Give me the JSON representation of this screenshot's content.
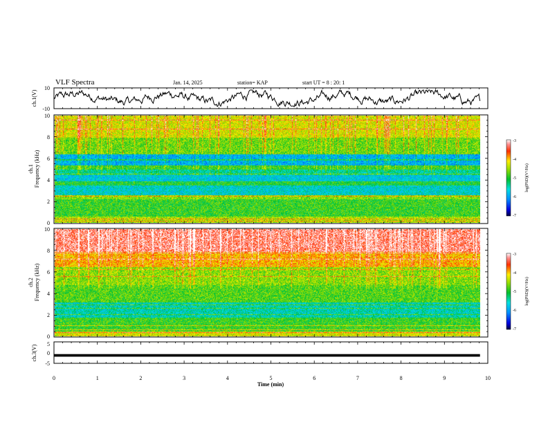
{
  "header": {
    "title": "VLF Spectra",
    "date": "Jan. 14, 2025",
    "station": "station= KAP",
    "start": "start  UT =  8 : 20: 1"
  },
  "colors": {
    "spec_low": "#1a1acc",
    "spec_mid": "#22cc44",
    "spec_high": "#ee2211",
    "trace": "#000000"
  },
  "chart_data": [
    {
      "id": "ch1_waveform",
      "type": "line",
      "ylabel": "ch.1(V)",
      "ylim": [
        -10,
        10
      ],
      "yticks": [
        "10",
        "-10"
      ],
      "xlim": [
        0,
        10
      ],
      "series_level": "noise around 0 V, amplitude ~ +-6 V, data ends near 9.8 min"
    },
    {
      "id": "ch1_spectrogram",
      "type": "heatmap",
      "ylabel": "Frequency (kHz)",
      "channel_label": "ch.1",
      "ylim": [
        0,
        10
      ],
      "yticks": [
        "0",
        "2",
        "4",
        "6",
        "8",
        "10"
      ],
      "xlim": [
        0,
        10
      ],
      "colorbar": {
        "label": "log(PSD)(V²/Hz)",
        "range": [
          -7,
          -3
        ],
        "ticks": [
          "-3",
          "-4",
          "-5",
          "-6",
          "-7"
        ]
      },
      "bands": [
        {
          "from": 0.0,
          "to": 0.6,
          "level": -4.5
        },
        {
          "from": 0.6,
          "to": 2.2,
          "level": -4.9
        },
        {
          "from": 2.2,
          "to": 2.6,
          "level": -4.6
        },
        {
          "from": 2.6,
          "to": 3.5,
          "level": -5.6
        },
        {
          "from": 3.5,
          "to": 3.9,
          "level": -5.0
        },
        {
          "from": 3.9,
          "to": 4.5,
          "level": -5.7
        },
        {
          "from": 4.5,
          "to": 5.0,
          "level": -5.4
        },
        {
          "from": 5.0,
          "to": 5.4,
          "level": -4.9
        },
        {
          "from": 5.4,
          "to": 6.4,
          "level": -5.9
        },
        {
          "from": 6.4,
          "to": 8.0,
          "level": -4.7
        },
        {
          "from": 8.0,
          "to": 10.0,
          "level": -4.3
        }
      ]
    },
    {
      "id": "ch2_spectrogram",
      "type": "heatmap",
      "ylabel": "Frequency (kHz)",
      "channel_label": "ch.2",
      "ylim": [
        0,
        10
      ],
      "yticks": [
        "0",
        "2",
        "4",
        "6",
        "8",
        "10"
      ],
      "xlim": [
        0,
        10
      ],
      "colorbar": {
        "label": "log(PSD)(V²/Hz)",
        "range": [
          -7,
          -3
        ],
        "ticks": [
          "-3",
          "-4",
          "-5",
          "-6",
          "-7"
        ]
      },
      "bands": [
        {
          "from": 0.0,
          "to": 0.5,
          "level": -4.3
        },
        {
          "from": 0.5,
          "to": 1.8,
          "level": -4.9
        },
        {
          "from": 1.8,
          "to": 3.2,
          "level": -5.5
        },
        {
          "from": 3.2,
          "to": 4.8,
          "level": -4.8
        },
        {
          "from": 4.8,
          "to": 6.5,
          "level": -4.6
        },
        {
          "from": 6.5,
          "to": 8.0,
          "level": -4.0
        },
        {
          "from": 8.0,
          "to": 10.0,
          "level": -3.3
        }
      ]
    },
    {
      "id": "ch3_waveform",
      "type": "line",
      "ylabel": "ch.3(V)",
      "ylim": [
        -5,
        5
      ],
      "yticks": [
        "5",
        "0",
        "-5"
      ],
      "xlim": [
        0,
        10
      ],
      "series_level": "near-constant -1.2 V thick band, data ends near 9.8 min"
    }
  ],
  "xaxis": {
    "label": "Time  (min)",
    "ticks": [
      "0",
      "1",
      "2",
      "3",
      "4",
      "5",
      "6",
      "7",
      "8",
      "9",
      "10"
    ]
  }
}
